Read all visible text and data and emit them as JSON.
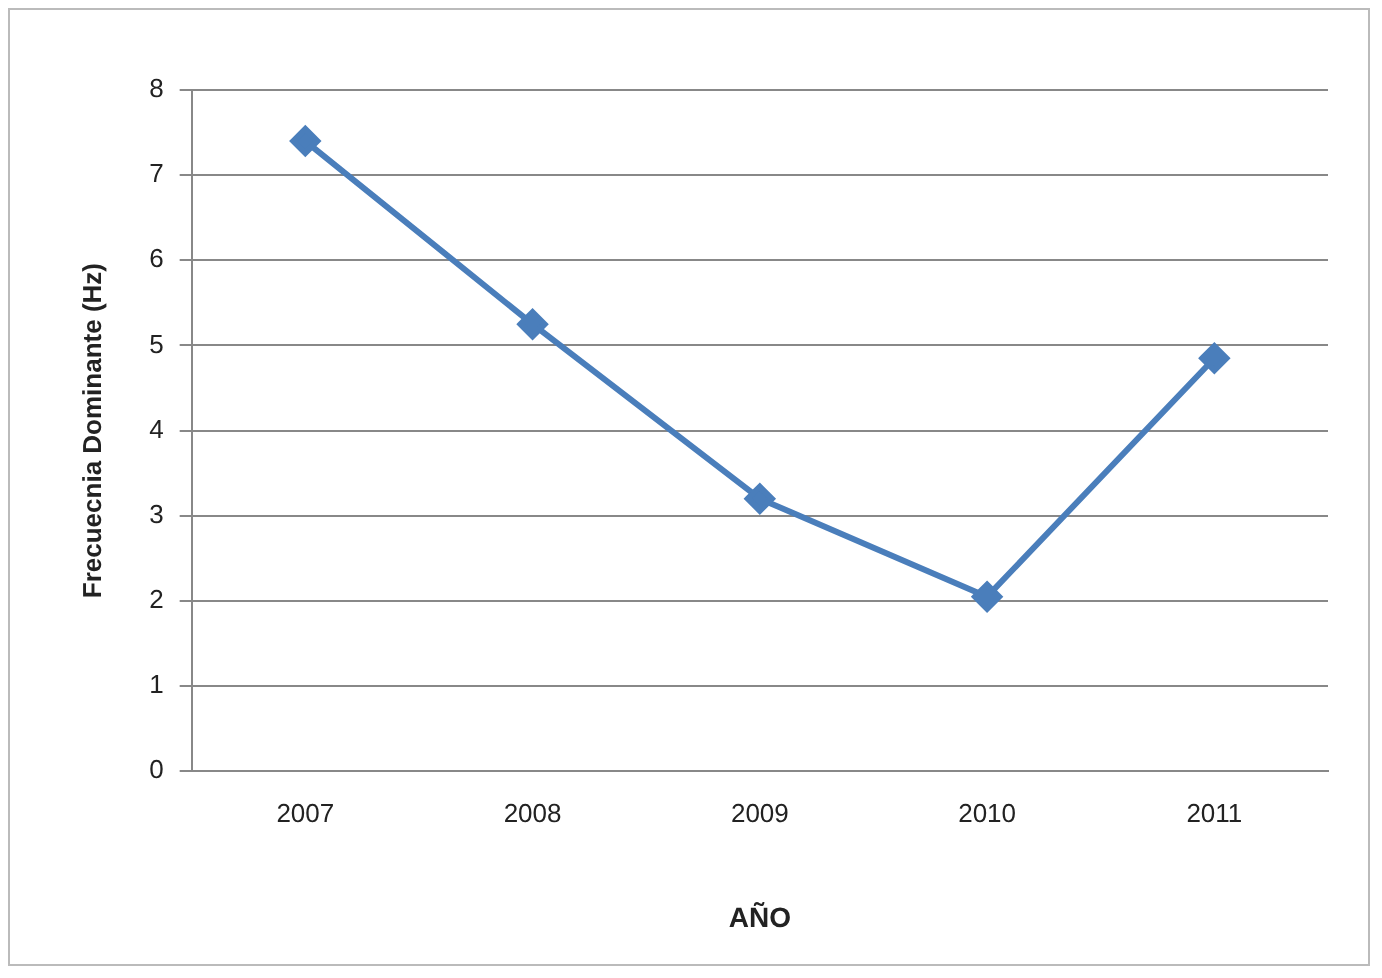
{
  "chart_data": {
    "type": "line",
    "xlabel": "AÑO",
    "ylabel": "Frecuecnia Dominante (Hz)",
    "categories": [
      "2007",
      "2008",
      "2009",
      "2010",
      "2011"
    ],
    "series": [
      {
        "color": "#4a7ebb",
        "values": [
          7.4,
          5.25,
          3.2,
          2.05,
          4.85
        ]
      }
    ],
    "ylim": [
      0,
      8
    ],
    "yticks": [
      0,
      1,
      2,
      3,
      4,
      5,
      6,
      7,
      8
    ],
    "grid": "y",
    "legend": false,
    "marker": "diamond",
    "line_style": "solid"
  }
}
